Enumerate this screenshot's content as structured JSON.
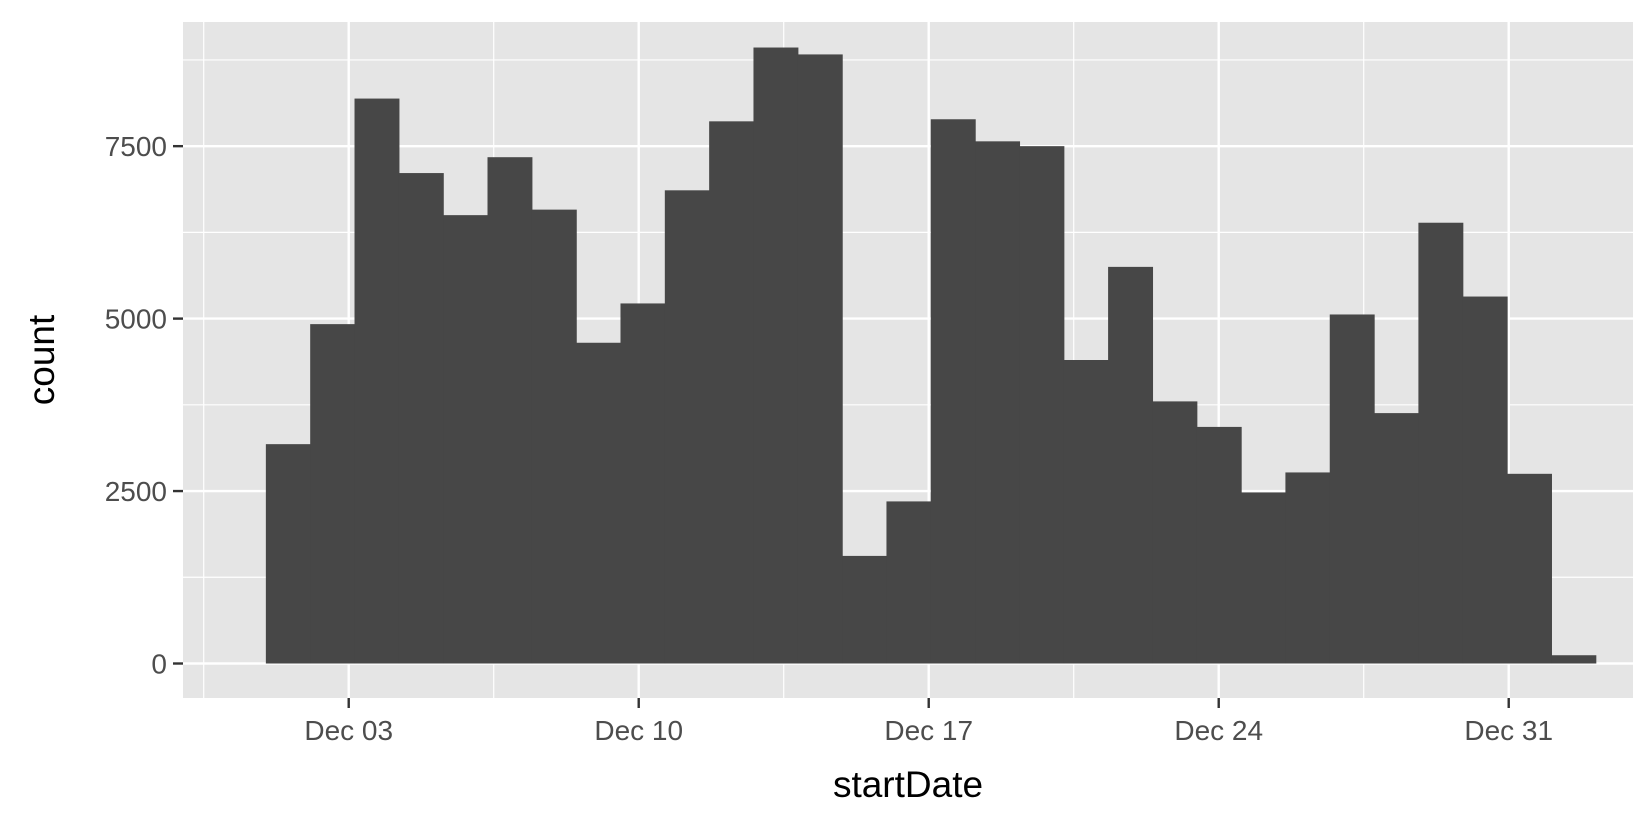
{
  "chart_data": {
    "type": "bar",
    "xlabel": "startDate",
    "ylabel": "count",
    "ylim": [
      -500,
      9300
    ],
    "y_ticks": [
      0,
      2500,
      5000,
      7500
    ],
    "y_tick_labels": [
      "0",
      "2500",
      "5000",
      "7500"
    ],
    "x_range": [
      "2018-11-29",
      "2019-01-03"
    ],
    "x_ticks": [
      "2018-12-03",
      "2018-12-10",
      "2018-12-17",
      "2018-12-24",
      "2018-12-31"
    ],
    "x_tick_labels": [
      "Dec 03",
      "Dec 10",
      "Dec 17",
      "Dec 24",
      "Dec 31"
    ],
    "bin_start": "2018-12-01",
    "bin_days": 1.07,
    "values": [
      3180,
      4920,
      8190,
      7110,
      6500,
      7340,
      6580,
      4650,
      5220,
      6860,
      7860,
      8930,
      8830,
      1560,
      2350,
      7890,
      7570,
      7500,
      4400,
      5750,
      3800,
      3430,
      2480,
      2770,
      5060,
      3630,
      6390,
      5320,
      2750,
      120
    ],
    "bar_color": "#474747",
    "panel_color": "#e5e5e5",
    "grid_color": "#ffffff",
    "grid": true,
    "legend": "none"
  }
}
